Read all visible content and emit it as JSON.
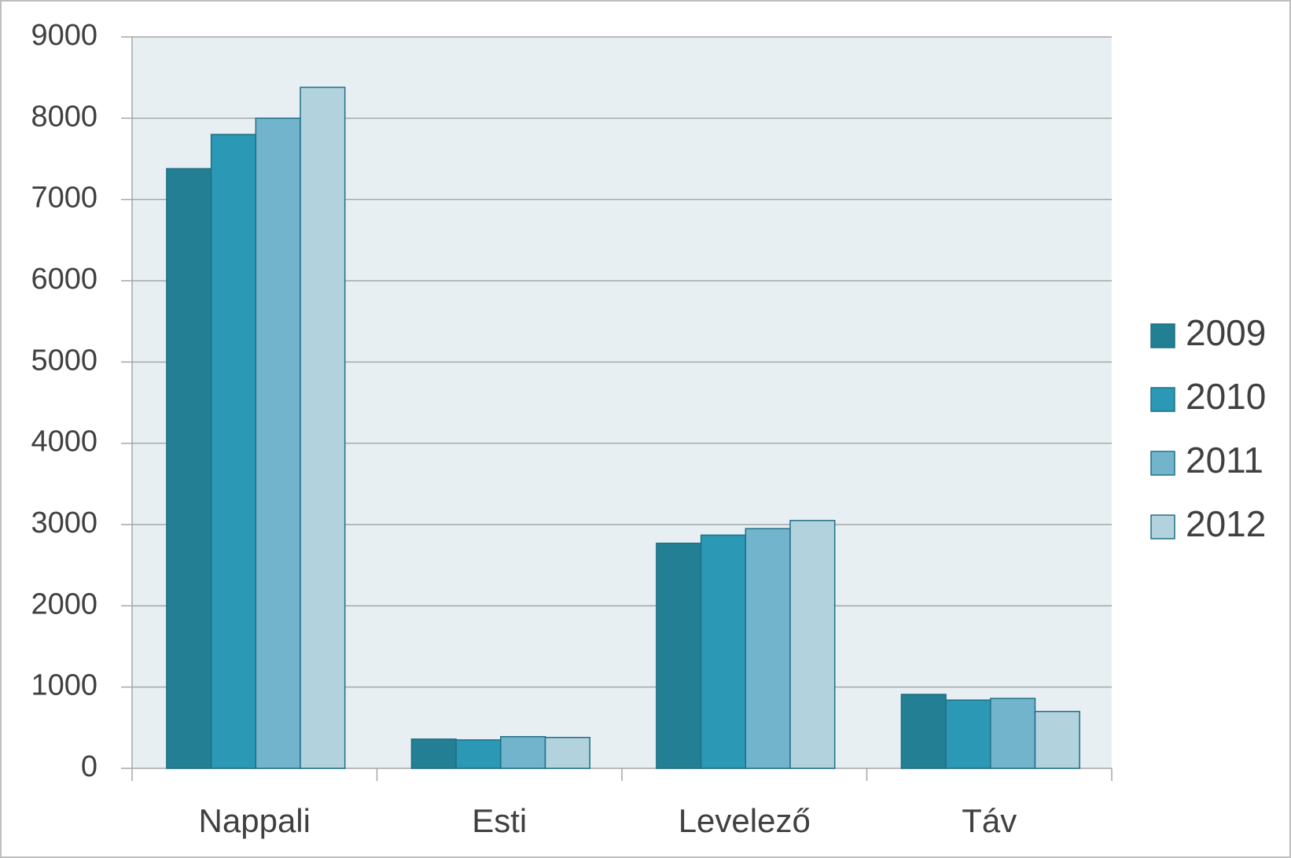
{
  "chart_data": {
    "type": "bar",
    "categories": [
      "Nappali",
      "Esti",
      "Levelező",
      "Táv"
    ],
    "series": [
      {
        "name": "2009",
        "color": "#227f94",
        "values": [
          7380,
          360,
          2770,
          910
        ]
      },
      {
        "name": "2010",
        "color": "#2b98b5",
        "values": [
          7800,
          350,
          2870,
          840
        ]
      },
      {
        "name": "2011",
        "color": "#73b4cd",
        "values": [
          8000,
          390,
          2950,
          860
        ]
      },
      {
        "name": "2012",
        "color": "#b2d2de",
        "values": [
          8380,
          380,
          3050,
          700
        ]
      }
    ],
    "ylim": [
      0,
      9000
    ],
    "yticks": [
      0,
      1000,
      2000,
      3000,
      4000,
      5000,
      6000,
      7000,
      8000,
      9000
    ],
    "grid": true,
    "legend": "right"
  }
}
